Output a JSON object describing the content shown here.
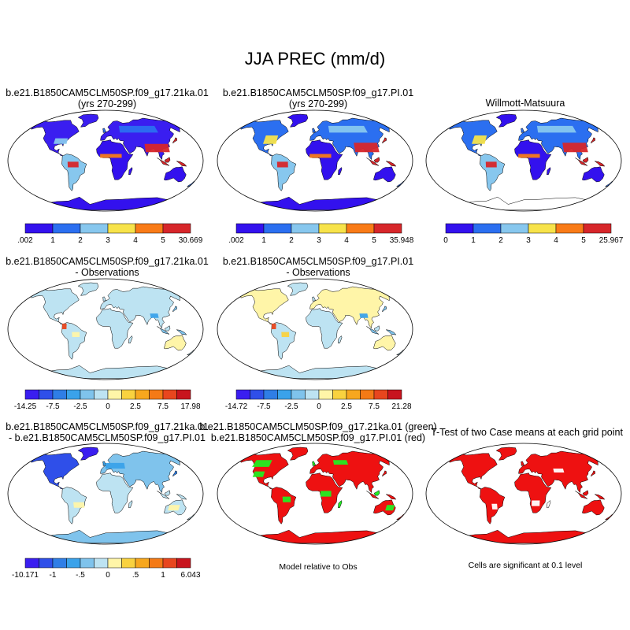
{
  "figure": {
    "title": "JJA PREC (mm/d)"
  },
  "panels": [
    {
      "id": "p1",
      "title_line1": "b.e21.B1850CAM5CLM50SP.f09_g17.21ka.01",
      "title_line2": "(yrs 270-299)",
      "style": "abs21"
    },
    {
      "id": "p2",
      "title_line1": "b.e21.B1850CAM5CLM50SP.f09_g17.PI.01",
      "title_line2": "(yrs 270-299)",
      "style": "absPI"
    },
    {
      "id": "p3",
      "title_line1": "Willmott-Matsuura",
      "title_line2": "",
      "style": "obs"
    },
    {
      "id": "p4",
      "title_line1": "b.e21.B1850CAM5CLM50SP.f09_g17.21ka.01",
      "title_line2": "- Observations",
      "style": "diff21"
    },
    {
      "id": "p5",
      "title_line1": "b.e21.B1850CAM5CLM50SP.f09_g17.PI.01",
      "title_line2": "- Observations",
      "style": "diffPI"
    },
    {
      "id": "p7",
      "title_line1": "b.e21.B1850CAM5CLM50SP.f09_g17.21ka.01",
      "title_line2": "- b.e21.B1850CAM5CLM50SP.f09_g17.PI.01",
      "style": "diffCase"
    },
    {
      "id": "p8",
      "title_line1": "b.e21.B1850CAM5CLM50SP.f09_g17.21ka.01 (green)",
      "title_line2": "b.e21.B1850CAM5CLM50SP.f09_g17.PI.01 (red)",
      "style": "relObs",
      "note": "Model relative to Obs"
    },
    {
      "id": "p9",
      "title_line1": "T-Test of two Case means at each grid point",
      "title_line2": "",
      "style": "ttest",
      "note": "Cells are significant at 0.1 level"
    }
  ],
  "chart_data": [
    {
      "type": "heatmap",
      "panel": "p1",
      "title": "b.e21.B1850CAM5CLM50SP.f09_g17.21ka.01 (yrs 270-299)",
      "colorbar": {
        "levels": [
          ".002",
          "1",
          "2",
          "3",
          "4",
          "5",
          "30.669"
        ],
        "colors": [
          "#3311ee",
          "#2b6ff0",
          "#87c7ee",
          "#f7e34a",
          "#f97b17",
          "#d7262a"
        ]
      }
    },
    {
      "type": "heatmap",
      "panel": "p2",
      "title": "b.e21.B1850CAM5CLM50SP.f09_g17.PI.01 (yrs 270-299)",
      "colorbar": {
        "levels": [
          ".002",
          "1",
          "2",
          "3",
          "4",
          "5",
          "35.948"
        ],
        "colors": [
          "#3311ee",
          "#2b6ff0",
          "#87c7ee",
          "#f7e34a",
          "#f97b17",
          "#d7262a"
        ]
      }
    },
    {
      "type": "heatmap",
      "panel": "p3",
      "title": "Willmott-Matsuura",
      "colorbar": {
        "levels": [
          "0",
          "1",
          "2",
          "3",
          "4",
          "5",
          "25.967"
        ],
        "colors": [
          "#3311ee",
          "#2b6ff0",
          "#87c7ee",
          "#f7e34a",
          "#f97b17",
          "#d7262a"
        ]
      }
    },
    {
      "type": "heatmap",
      "panel": "p4",
      "title": "b.e21.B1850CAM5CLM50SP.f09_g17.21ka.01 - Observations",
      "colorbar": {
        "levels": [
          "-14.25",
          "-7.5",
          "-2.5",
          "0",
          "2.5",
          "7.5",
          "17.98"
        ],
        "colors": [
          "#3a1ef0",
          "#2f4fe9",
          "#2f7ee6",
          "#3aa2ea",
          "#7fc3ec",
          "#bde3f2",
          "#fff5a8",
          "#f9d23f",
          "#f7a71e",
          "#f47a16",
          "#e8461e",
          "#c8141e"
        ]
      }
    },
    {
      "type": "heatmap",
      "panel": "p5",
      "title": "b.e21.B1850CAM5CLM50SP.f09_g17.PI.01 - Observations",
      "colorbar": {
        "levels": [
          "-14.72",
          "-7.5",
          "-2.5",
          "0",
          "2.5",
          "7.5",
          "21.28"
        ],
        "colors": [
          "#3a1ef0",
          "#2f4fe9",
          "#2f7ee6",
          "#3aa2ea",
          "#7fc3ec",
          "#bde3f2",
          "#fff5a8",
          "#f9d23f",
          "#f7a71e",
          "#f47a16",
          "#e8461e",
          "#c8141e"
        ]
      }
    },
    {
      "type": "heatmap",
      "panel": "p7",
      "title": "b.e21.B1850CAM5CLM50SP.f09_g17.21ka.01 - b.e21.B1850CAM5CLM50SP.f09_g17.PI.01",
      "colorbar": {
        "levels": [
          "-10.171",
          "-1",
          "-.5",
          "0",
          ".5",
          "1",
          "6.043"
        ],
        "colors": [
          "#3a1ef0",
          "#2f4fe9",
          "#2f7ee6",
          "#3aa2ea",
          "#7fc3ec",
          "#bde3f2",
          "#fff5a8",
          "#f9d23f",
          "#f7a71e",
          "#f47a16",
          "#e8461e",
          "#c8141e"
        ]
      }
    },
    {
      "type": "heatmap",
      "panel": "p8",
      "title": "Model relative to Obs",
      "legend": [
        {
          "name": "21ka.01",
          "color": "#22ee22"
        },
        {
          "name": "PI.01",
          "color": "#ee1111"
        }
      ]
    },
    {
      "type": "heatmap",
      "panel": "p9",
      "title": "Cells are significant at 0.1 level",
      "legend": [
        {
          "name": "significant",
          "color": "#ee1111"
        }
      ]
    }
  ],
  "colors": {
    "ocean": "#ffffff",
    "outline": "#000000",
    "green": "#22ee22",
    "red": "#ee1111"
  }
}
